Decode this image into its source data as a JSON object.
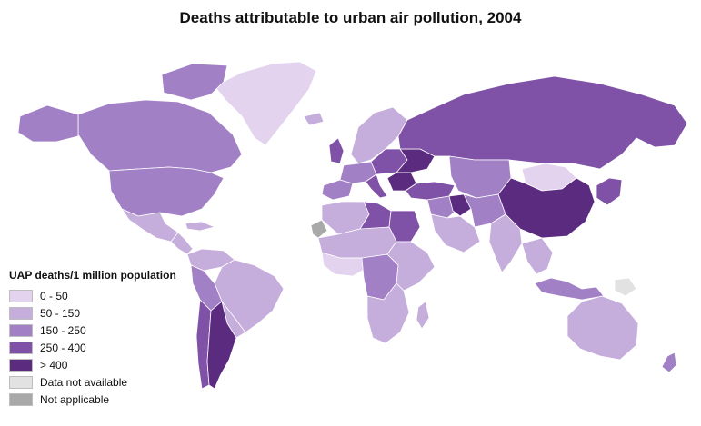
{
  "title": "Deaths attributable to urban air pollution, 2004",
  "legend": {
    "title": "UAP deaths/1 million population",
    "items": [
      {
        "key": "c0",
        "label": "0 - 50",
        "color": "#e3d3ee"
      },
      {
        "key": "c1",
        "label": "50 - 150",
        "color": "#c5addc"
      },
      {
        "key": "c2",
        "label": "150 - 250",
        "color": "#a280c6"
      },
      {
        "key": "c3",
        "label": "250 - 400",
        "color": "#7f52a8"
      },
      {
        "key": "c4",
        "label": "> 400",
        "color": "#5b2b80"
      },
      {
        "key": "na",
        "label": "Data not available",
        "color": "#e2e2e2"
      },
      {
        "key": "np",
        "label": "Not applicable",
        "color": "#a9a9a9"
      }
    ]
  },
  "regions": [
    {
      "id": "greenland",
      "category": "c0"
    },
    {
      "id": "canada",
      "category": "c2"
    },
    {
      "id": "arctic-islands",
      "category": "c2"
    },
    {
      "id": "alaska",
      "category": "c2"
    },
    {
      "id": "usa",
      "category": "c2"
    },
    {
      "id": "mexico",
      "category": "c1"
    },
    {
      "id": "central-america",
      "category": "c1"
    },
    {
      "id": "caribbean",
      "category": "c1"
    },
    {
      "id": "colombia-venezuela",
      "category": "c1"
    },
    {
      "id": "brazil",
      "category": "c1"
    },
    {
      "id": "peru-bolivia",
      "category": "c2"
    },
    {
      "id": "paraguay-uruguay",
      "category": "c1"
    },
    {
      "id": "chile",
      "category": "c3"
    },
    {
      "id": "argentina",
      "category": "c4"
    },
    {
      "id": "iceland",
      "category": "c1"
    },
    {
      "id": "uk-ireland",
      "category": "c3"
    },
    {
      "id": "scandinavia",
      "category": "c1"
    },
    {
      "id": "western-europe",
      "category": "c2"
    },
    {
      "id": "iberia",
      "category": "c2"
    },
    {
      "id": "italy",
      "category": "c3"
    },
    {
      "id": "central-europe",
      "category": "c3"
    },
    {
      "id": "ukraine",
      "category": "c4"
    },
    {
      "id": "balkans-romania",
      "category": "c4"
    },
    {
      "id": "turkey",
      "category": "c3"
    },
    {
      "id": "russia",
      "category": "c3"
    },
    {
      "id": "kazakhstan-central-asia",
      "category": "c2"
    },
    {
      "id": "mongolia",
      "category": "c0"
    },
    {
      "id": "china",
      "category": "c4"
    },
    {
      "id": "korea-japan",
      "category": "c3"
    },
    {
      "id": "middle-east",
      "category": "c2"
    },
    {
      "id": "iraq-syria",
      "category": "c4"
    },
    {
      "id": "arabia",
      "category": "c1"
    },
    {
      "id": "iran-afghanistan",
      "category": "c2"
    },
    {
      "id": "india",
      "category": "c1"
    },
    {
      "id": "southeast-asia",
      "category": "c1"
    },
    {
      "id": "indonesia-philippines",
      "category": "c2"
    },
    {
      "id": "new-guinea",
      "category": "na"
    },
    {
      "id": "north-africa",
      "category": "c1"
    },
    {
      "id": "libya",
      "category": "c3"
    },
    {
      "id": "egypt",
      "category": "c3"
    },
    {
      "id": "sahel",
      "category": "c1"
    },
    {
      "id": "west-africa",
      "category": "c0"
    },
    {
      "id": "central-africa",
      "category": "c2"
    },
    {
      "id": "east-africa",
      "category": "c1"
    },
    {
      "id": "southern-africa",
      "category": "c1"
    },
    {
      "id": "madagascar",
      "category": "c1"
    },
    {
      "id": "western-sahara",
      "category": "np"
    },
    {
      "id": "australia",
      "category": "c1"
    },
    {
      "id": "new-zealand",
      "category": "c2"
    }
  ]
}
